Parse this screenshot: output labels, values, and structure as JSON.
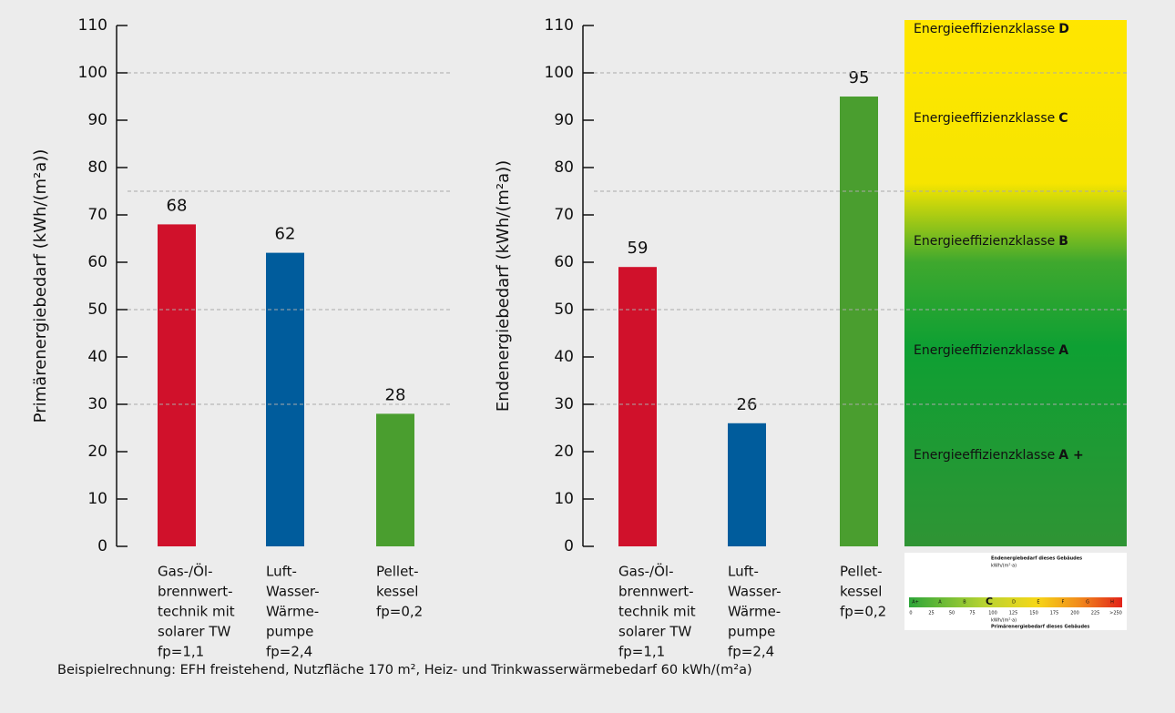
{
  "chart_data": [
    {
      "type": "bar",
      "ylabel": "Primärenergiebedarf (kWh/(m²a))",
      "categories": [
        [
          "Gas-/Öl-",
          "brennwert-",
          "technik mit",
          "solarer TW",
          "fp=1,1"
        ],
        [
          "Luft-",
          "Wasser-",
          "Wärme-",
          "pumpe",
          "fp=2,4"
        ],
        [
          "Pellet-",
          "kessel",
          "fp=0,2"
        ]
      ],
      "values": [
        68,
        62,
        28
      ],
      "colors": [
        "#d0112b",
        "#005c9c",
        "#4a9e2f"
      ],
      "ylim": [
        0,
        110
      ],
      "yticks": [
        0,
        10,
        20,
        30,
        40,
        50,
        60,
        70,
        80,
        90,
        100,
        110
      ],
      "class_boundaries": [
        30,
        50,
        75,
        100
      ]
    },
    {
      "type": "bar",
      "ylabel": "Endenergiebedarf (kWh/(m²a))",
      "categories": [
        [
          "Gas-/Öl-",
          "brennwert-",
          "technik mit",
          "solarer TW",
          "fp=1,1"
        ],
        [
          "Luft-",
          "Wasser-",
          "Wärme-",
          "pumpe",
          "fp=2,4"
        ],
        [
          "Pellet-",
          "kessel",
          "fp=0,2"
        ]
      ],
      "values": [
        59,
        26,
        95
      ],
      "colors": [
        "#d0112b",
        "#005c9c",
        "#4a9e2f"
      ],
      "ylim": [
        0,
        110
      ],
      "yticks": [
        0,
        10,
        20,
        30,
        40,
        50,
        60,
        70,
        80,
        90,
        100,
        110
      ],
      "class_boundaries": [
        30,
        50,
        75,
        100
      ],
      "energy_classes": [
        {
          "label": "Energieeffizienzklasse",
          "letter": "D"
        },
        {
          "label": "Energieeffizienzklasse",
          "letter": "C"
        },
        {
          "label": "Energieeffizienzklasse",
          "letter": "B"
        },
        {
          "label": "Energieeffizienzklasse",
          "letter": "A"
        },
        {
          "label": "Energieeffizienzklasse",
          "letter": "A +"
        }
      ]
    }
  ],
  "energy_label": {
    "top": "Endenergiebedarf dieses Gebäudes",
    "top_unit": "kWh/(m²·a)",
    "classes": [
      "A+",
      "A",
      "B",
      "C",
      "D",
      "E",
      "F",
      "G",
      "H"
    ],
    "scale": [
      "0",
      "25",
      "50",
      "75",
      "100",
      "125",
      "150",
      "175",
      "200",
      "225",
      ">250"
    ],
    "bottom_unit": "kWh/(m²·a)",
    "bottom": "Primärenergiebedarf dieses Gebäudes"
  },
  "footnote": "Beispielrechnung: EFH freistehend, Nutzfläche 170 m², Heiz- und Trinkwasserwärmebedarf 60 kWh/(m²a)"
}
